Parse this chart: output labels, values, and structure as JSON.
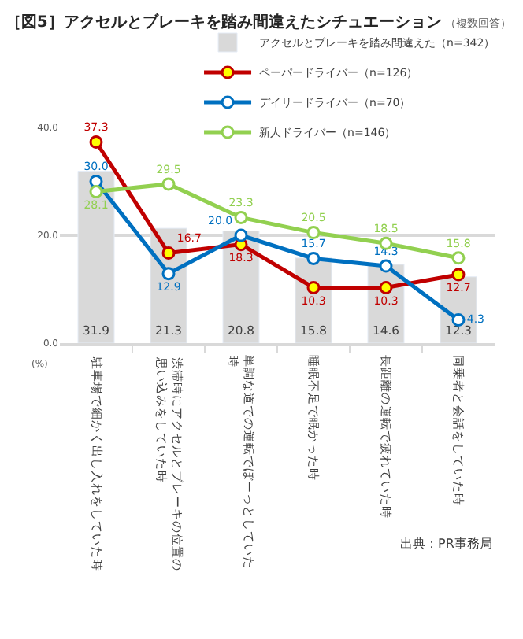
{
  "chart_data": {
    "type": "bar",
    "title": "［図5］アクセルとブレーキを踏み間違えたシチュエーション",
    "subtitle": "（複数回答）",
    "ylabel": "(%)",
    "categories": [
      "駐車場で細かく出し入れをしていた時",
      "渋滞時にアクセルとブレーキの位置の思い込みをしていた時",
      "単調な道での運転でぼーっとしていた時",
      "睡眠不足で眠かった時",
      "長距離の運転で疲れていた時",
      "同乗者と会話をしていた時"
    ],
    "series": [
      {
        "name": "アクセルとブレーキを踏み間違えた（n=342）",
        "type": "bar",
        "color": "#d9d9d9",
        "values": [
          31.9,
          21.3,
          20.8,
          15.8,
          14.6,
          12.3
        ]
      },
      {
        "name": "ペーパードライバー（n=126）",
        "type": "line",
        "color": "#c00000",
        "values": [
          37.3,
          16.7,
          18.3,
          10.3,
          10.3,
          12.7
        ]
      },
      {
        "name": "デイリードライバー（n=70）",
        "type": "line",
        "color": "#0070c0",
        "values": [
          30.0,
          12.9,
          20.0,
          15.7,
          14.3,
          4.3
        ],
        "value_labels": [
          "30.0",
          "12.9",
          "20.0",
          "15.7",
          "14.3",
          "4.3"
        ]
      },
      {
        "name": "新人ドライバー（n=146）",
        "type": "line",
        "color": "#92d050",
        "values": [
          28.1,
          29.5,
          23.3,
          20.5,
          18.5,
          15.8
        ]
      }
    ],
    "ylim": [
      0,
      40
    ],
    "yticks": [
      {
        "value": 0,
        "label": "0.0"
      },
      {
        "value": 20,
        "label": "20.0"
      },
      {
        "value": 40,
        "label": "40.0"
      }
    ],
    "grid": "y",
    "legend": "top right",
    "marker": "circle",
    "data_labels": true,
    "annotations": [
      "出典：PR事務局"
    ]
  }
}
